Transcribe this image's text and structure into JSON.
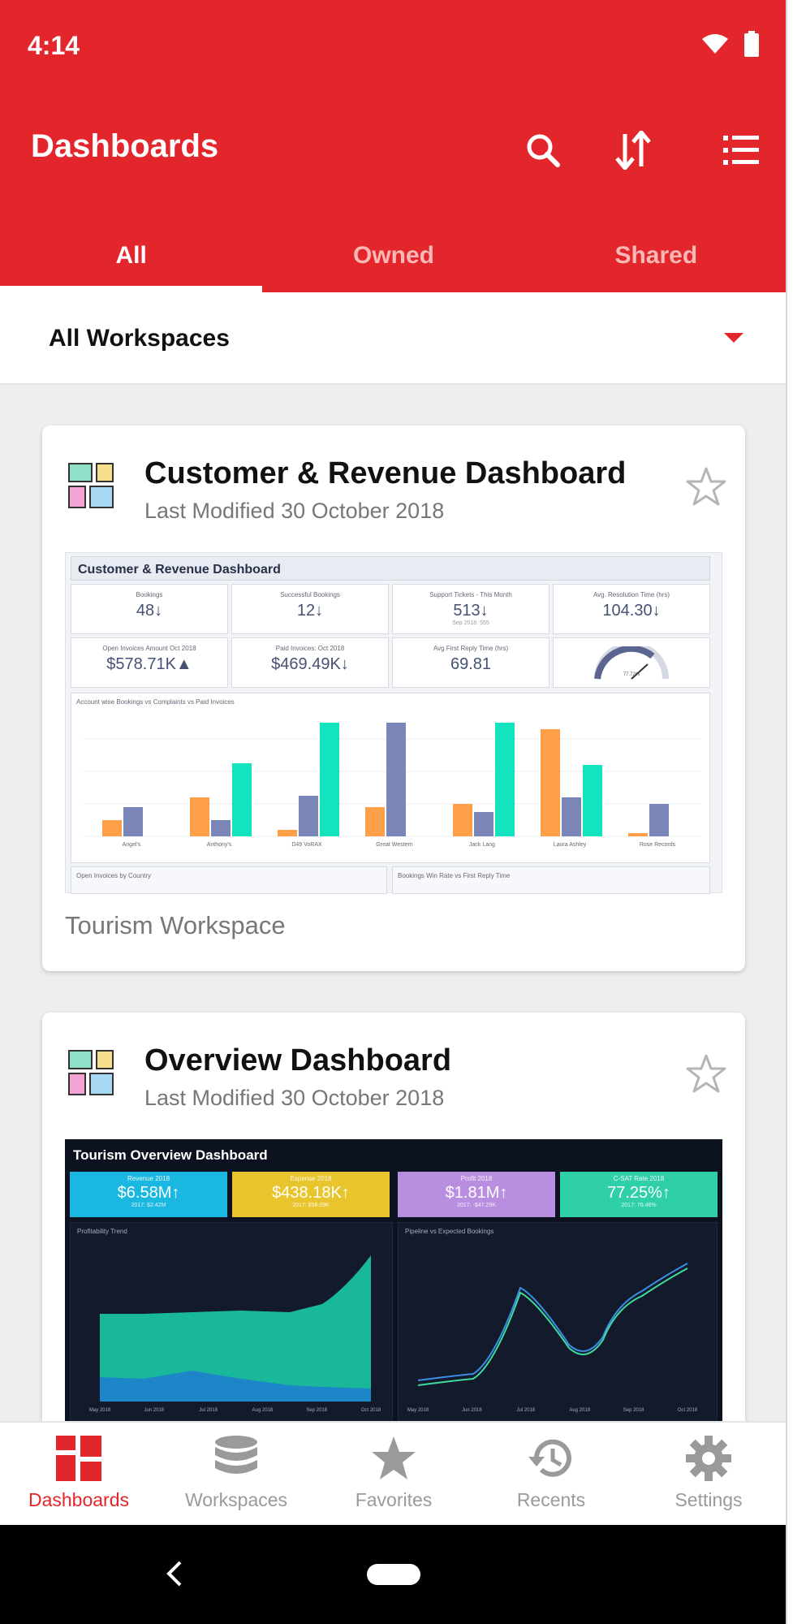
{
  "status": {
    "time": "4:14"
  },
  "header": {
    "title": "Dashboards",
    "tabs": [
      {
        "label": "All",
        "active": true
      },
      {
        "label": "Owned",
        "active": false
      },
      {
        "label": "Shared",
        "active": false
      }
    ]
  },
  "workspace_selector": {
    "value": "All Workspaces"
  },
  "cards": [
    {
      "title": "Customer & Revenue Dashboard",
      "modified": "Last Modified 30 October 2018",
      "workspace": "Tourism Workspace",
      "preview": {
        "title": "Customer & Revenue Dashboard",
        "kpis": [
          {
            "label": "Bookings",
            "value": "48↓"
          },
          {
            "label": "Successful Bookings",
            "value": "12↓"
          },
          {
            "label": "Support Tickets - This Month",
            "value": "513↓",
            "sub": "Sep 2018: 555"
          },
          {
            "label": "Avg. Resolution Time (hrs)",
            "value": "104.30↓"
          },
          {
            "label": "Open Invoices Amount Oct 2018",
            "value": "$578.71K▲"
          },
          {
            "label": "Paid Invoices: Oct 2018",
            "value": "$469.49K↓"
          },
          {
            "label": "Avg First Reply Time (hrs)",
            "value": "69.81"
          },
          {
            "label": "",
            "value": "77.72%"
          }
        ],
        "chart_title": "Account wise Bookings vs Complaints vs Paid Invoices",
        "categories": [
          "Angel's",
          "Anthony's",
          "D49 VoRAX",
          "Great Western",
          "Jack Lang",
          "Laura Ashley",
          "Rose Records"
        ],
        "bottom_panels": [
          "Open Invoices by Country",
          "Bookings Win Rate vs First Reply Time"
        ]
      }
    },
    {
      "title": "Overview Dashboard",
      "modified": "Last Modified 30 October 2018",
      "preview": {
        "title": "Tourism Overview Dashboard",
        "kpis": [
          {
            "label": "Revenue 2018",
            "value": "$6.58M↑",
            "sub": "2017: $2.42M",
            "color": "#1ab7e0"
          },
          {
            "label": "Expense 2018",
            "value": "$438.18K↑",
            "sub": "2017: $58.09K",
            "color": "#e8c52d"
          },
          {
            "label": "Profit 2018",
            "value": "$1.81M↑",
            "sub": "2017: -$47.29K",
            "color": "#b98ee0"
          },
          {
            "label": "C-SAT Rate 2018",
            "value": "77.25%↑",
            "sub": "2017: 76.46%",
            "color": "#2ecfa9"
          }
        ],
        "left_chart_title": "Profitability Trend",
        "right_chart_title": "Pipeline vs Expected Bookings",
        "months": [
          "May 2018",
          "Jun 2018",
          "Jul 2018",
          "Aug 2018",
          "Sep 2018",
          "Oct 2018"
        ]
      }
    }
  ],
  "bottom_nav": [
    {
      "label": "Dashboards",
      "icon": "dashboards-icon",
      "active": true
    },
    {
      "label": "Workspaces",
      "icon": "database-icon",
      "active": false
    },
    {
      "label": "Favorites",
      "icon": "star-icon",
      "active": false
    },
    {
      "label": "Recents",
      "icon": "history-icon",
      "active": false
    },
    {
      "label": "Settings",
      "icon": "gear-icon",
      "active": false
    }
  ],
  "colors": {
    "brand": "#e3262b"
  }
}
